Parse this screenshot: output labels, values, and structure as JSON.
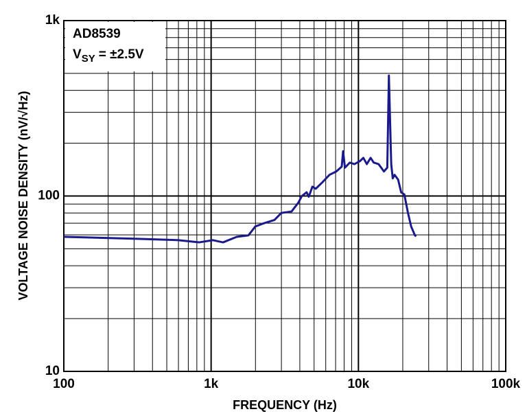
{
  "chart_data": {
    "type": "line",
    "xlabel": "FREQUENCY (Hz)",
    "ylabel": "VOLTAGE NOISE DENSITY (nV/√Hz)",
    "annotations": [
      "AD8539",
      "V",
      "SY",
      "= ±2.5V"
    ],
    "xscale": "log",
    "yscale": "log",
    "grid": true,
    "minor_grid": true,
    "xlim": [
      100,
      100000
    ],
    "ylim": [
      10,
      1000
    ],
    "xticks": [
      100,
      {
        "value": 1000,
        "label": "1k"
      },
      {
        "value": 10000,
        "label": "10k"
      },
      {
        "value": 100000,
        "label": "100k"
      }
    ],
    "yticks": [
      10,
      100,
      {
        "value": 1000,
        "label": "1k"
      }
    ],
    "series": [
      {
        "color": "#1a1a8c",
        "x": [
          100,
          315,
          600,
          828,
          1026,
          1205,
          1493,
          1790,
          1995,
          2292,
          2692,
          2994,
          3516,
          3917,
          4130,
          4450,
          4600,
          4870,
          5130,
          5710,
          6360,
          7080,
          7700,
          7870,
          8100,
          8740,
          9400,
          10240,
          10800,
          11400,
          12100,
          12700,
          13700,
          14900,
          15700,
          16100,
          16700,
          17100,
          17600,
          18600,
          19500,
          20500,
          21700,
          22800,
          24200,
          24700
        ],
        "values": [
          58.5,
          57,
          56,
          54.4,
          56,
          54.4,
          58.5,
          59.6,
          67,
          70,
          73,
          80,
          81.6,
          91.8,
          100,
          105,
          99,
          113,
          110,
          120,
          132,
          138,
          147,
          180,
          145,
          155,
          152,
          158,
          165,
          152,
          165,
          155,
          152,
          138,
          145,
          486,
          152,
          126,
          132,
          124,
          105,
          102,
          80,
          67,
          59.6,
          59
        ]
      }
    ]
  }
}
